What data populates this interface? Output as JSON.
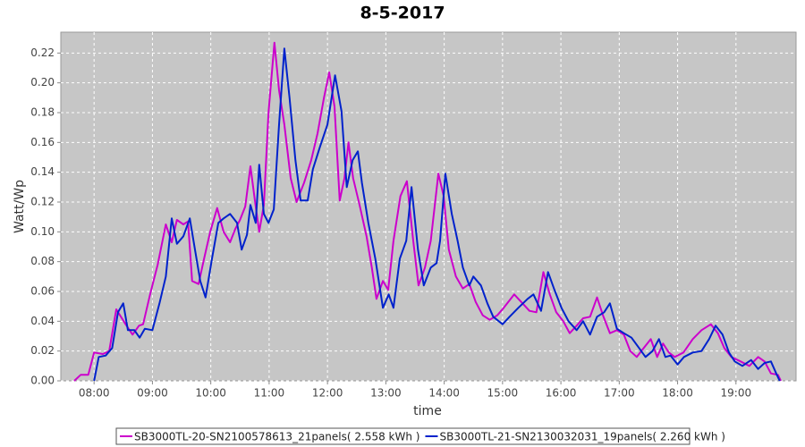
{
  "chart_data": {
    "type": "line",
    "title": "8-5-2017",
    "x_label": "time",
    "y_label": "Watt/Wp",
    "xlim": [
      7.43,
      20.03
    ],
    "ylim": [
      0,
      0.234
    ],
    "xticks": [
      {
        "value": 8,
        "label": "08:00"
      },
      {
        "value": 9,
        "label": "09:00"
      },
      {
        "value": 10,
        "label": "10:00"
      },
      {
        "value": 11,
        "label": "11:00"
      },
      {
        "value": 12,
        "label": "12:00"
      },
      {
        "value": 13,
        "label": "13:00"
      },
      {
        "value": 14,
        "label": "14:00"
      },
      {
        "value": 15,
        "label": "15:00"
      },
      {
        "value": 16,
        "label": "16:00"
      },
      {
        "value": 17,
        "label": "17:00"
      },
      {
        "value": 18,
        "label": "18:00"
      },
      {
        "value": 19,
        "label": "19:00"
      }
    ],
    "yticks": [
      {
        "value": 0,
        "label": "0.00"
      },
      0.02,
      0.04,
      0.06,
      0.08,
      {
        "value": 0.1,
        "label": "0.10"
      },
      0.12,
      0.14,
      0.16,
      0.18,
      {
        "value": 0.2,
        "label": "0.20"
      },
      0.22
    ],
    "grid": true,
    "series": [
      {
        "name": "SB3000TL-20-SN2100578613_21panels( 2.558 kWh )",
        "color": "#cc00cc",
        "x": [
          7.66,
          7.77,
          7.9,
          8.0,
          8.15,
          8.26,
          8.38,
          8.46,
          8.54,
          8.66,
          8.77,
          8.84,
          8.96,
          9.09,
          9.23,
          9.33,
          9.42,
          9.53,
          9.61,
          9.68,
          9.79,
          9.88,
          9.99,
          10.11,
          10.22,
          10.33,
          10.42,
          10.5,
          10.59,
          10.68,
          10.76,
          10.83,
          10.91,
          10.99,
          11.09,
          11.17,
          11.26,
          11.37,
          11.47,
          11.6,
          11.72,
          11.83,
          11.94,
          12.03,
          12.12,
          12.21,
          12.29,
          12.36,
          12.44,
          12.55,
          12.67,
          12.76,
          12.84,
          12.95,
          13.04,
          13.13,
          13.25,
          13.36,
          13.47,
          13.56,
          13.67,
          13.77,
          13.9,
          13.99,
          14.08,
          14.2,
          14.32,
          14.43,
          14.54,
          14.66,
          14.78,
          14.91,
          15.02,
          15.2,
          15.32,
          15.46,
          15.58,
          15.7,
          15.81,
          15.92,
          16.04,
          16.15,
          16.27,
          16.38,
          16.5,
          16.62,
          16.73,
          16.84,
          16.96,
          17.08,
          17.19,
          17.3,
          17.42,
          17.54,
          17.65,
          17.75,
          17.85,
          17.95,
          18.1,
          18.26,
          18.41,
          18.57,
          18.69,
          18.8,
          18.92,
          19.08,
          19.23,
          19.38,
          19.49,
          19.6,
          19.72,
          19.77
        ],
        "values": [
          0,
          0.004,
          0.004,
          0.019,
          0.018,
          0.02,
          0.048,
          0.043,
          0.038,
          0.031,
          0.037,
          0.038,
          0.058,
          0.078,
          0.105,
          0.093,
          0.108,
          0.105,
          0.107,
          0.067,
          0.065,
          0.081,
          0.1,
          0.116,
          0.1,
          0.093,
          0.102,
          0.108,
          0.117,
          0.144,
          0.12,
          0.1,
          0.118,
          0.18,
          0.227,
          0.195,
          0.172,
          0.136,
          0.12,
          0.133,
          0.148,
          0.166,
          0.19,
          0.207,
          0.184,
          0.121,
          0.136,
          0.16,
          0.136,
          0.118,
          0.097,
          0.076,
          0.055,
          0.067,
          0.061,
          0.094,
          0.124,
          0.134,
          0.094,
          0.064,
          0.076,
          0.094,
          0.139,
          0.124,
          0.088,
          0.07,
          0.062,
          0.065,
          0.053,
          0.044,
          0.041,
          0.044,
          0.049,
          0.058,
          0.053,
          0.047,
          0.046,
          0.073,
          0.058,
          0.046,
          0.04,
          0.032,
          0.037,
          0.042,
          0.043,
          0.056,
          0.043,
          0.032,
          0.034,
          0.031,
          0.02,
          0.016,
          0.022,
          0.028,
          0.016,
          0.025,
          0.019,
          0.016,
          0.019,
          0.028,
          0.034,
          0.038,
          0.032,
          0.022,
          0.016,
          0.013,
          0.01,
          0.016,
          0.013,
          0.005,
          0.004,
          0
        ]
      },
      {
        "name": "SB3000TL-21-SN2130032031_19panels( 2.260 kWh )",
        "color": "#0022cc",
        "x": [
          8.0,
          8.08,
          8.2,
          8.31,
          8.41,
          8.5,
          8.58,
          8.69,
          8.78,
          8.87,
          9.0,
          9.12,
          9.23,
          9.33,
          9.42,
          9.53,
          9.64,
          9.73,
          9.82,
          9.91,
          10.02,
          10.13,
          10.22,
          10.33,
          10.45,
          10.53,
          10.62,
          10.68,
          10.77,
          10.83,
          10.91,
          10.99,
          11.08,
          11.17,
          11.26,
          11.35,
          11.45,
          11.54,
          11.66,
          11.75,
          11.87,
          12.0,
          12.13,
          12.24,
          12.33,
          12.43,
          12.52,
          12.59,
          12.7,
          12.82,
          12.95,
          13.05,
          13.13,
          13.24,
          13.35,
          13.44,
          13.55,
          13.65,
          13.77,
          13.87,
          13.93,
          14.02,
          14.13,
          14.23,
          14.32,
          14.43,
          14.5,
          14.63,
          14.74,
          14.84,
          15.0,
          15.12,
          15.27,
          15.43,
          15.53,
          15.66,
          15.78,
          15.89,
          16.01,
          16.13,
          16.27,
          16.38,
          16.5,
          16.62,
          16.74,
          16.84,
          16.96,
          17.08,
          17.21,
          17.34,
          17.45,
          17.57,
          17.68,
          17.79,
          17.88,
          18.0,
          18.11,
          18.26,
          18.41,
          18.54,
          18.65,
          18.77,
          18.88,
          18.98,
          19.11,
          19.26,
          19.38,
          19.49,
          19.6,
          19.69,
          19.75
        ],
        "values": [
          0,
          0.016,
          0.017,
          0.022,
          0.046,
          0.052,
          0.034,
          0.034,
          0.029,
          0.035,
          0.034,
          0.052,
          0.07,
          0.109,
          0.092,
          0.097,
          0.109,
          0.088,
          0.067,
          0.056,
          0.082,
          0.106,
          0.109,
          0.112,
          0.106,
          0.088,
          0.098,
          0.118,
          0.106,
          0.145,
          0.112,
          0.106,
          0.115,
          0.172,
          0.223,
          0.19,
          0.148,
          0.121,
          0.121,
          0.142,
          0.157,
          0.172,
          0.205,
          0.181,
          0.13,
          0.148,
          0.154,
          0.133,
          0.106,
          0.082,
          0.049,
          0.058,
          0.049,
          0.082,
          0.094,
          0.13,
          0.088,
          0.064,
          0.076,
          0.079,
          0.094,
          0.139,
          0.112,
          0.094,
          0.076,
          0.064,
          0.07,
          0.064,
          0.052,
          0.043,
          0.038,
          0.043,
          0.049,
          0.055,
          0.058,
          0.047,
          0.073,
          0.061,
          0.049,
          0.04,
          0.034,
          0.04,
          0.031,
          0.043,
          0.046,
          0.052,
          0.035,
          0.032,
          0.029,
          0.022,
          0.016,
          0.02,
          0.028,
          0.016,
          0.017,
          0.011,
          0.016,
          0.019,
          0.02,
          0.028,
          0.037,
          0.031,
          0.019,
          0.013,
          0.01,
          0.014,
          0.008,
          0.012,
          0.013,
          0.005,
          0
        ]
      }
    ]
  }
}
